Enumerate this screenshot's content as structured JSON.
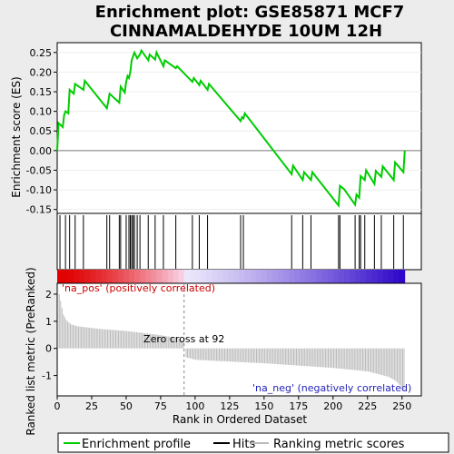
{
  "chart_data": {
    "type": "line",
    "title_line1": "Enrichment plot: GSE85871 MCF7",
    "title_line2": "CINNAMALDEHYDE 10UM 12H",
    "top_panel": {
      "ylabel": "Enrichment score (ES)",
      "ylim": [
        -0.16,
        0.275
      ],
      "yticks": [
        "-0.15",
        "-0.10",
        "-0.05",
        "0.00",
        "0.05",
        "0.10",
        "0.15",
        "0.20",
        "0.25"
      ],
      "series": [
        {
          "x": [
            0,
            1,
            4,
            5,
            6,
            8,
            9,
            12,
            13,
            19,
            20,
            36,
            37,
            38,
            45,
            46,
            49,
            50,
            51,
            52,
            53,
            54,
            55,
            56,
            58,
            60,
            61,
            66,
            67,
            71,
            72,
            77,
            78,
            86,
            87,
            98,
            99,
            103,
            104,
            109,
            110,
            133,
            134,
            135,
            136,
            170,
            171,
            178,
            179,
            184,
            185,
            204,
            205,
            208,
            216,
            217,
            219,
            220,
            223,
            224,
            230,
            231,
            235,
            236,
            244,
            245,
            251,
            252
          ],
          "es": [
            0.0,
            0.07,
            0.06,
            0.09,
            0.1,
            0.095,
            0.155,
            0.145,
            0.17,
            0.155,
            0.178,
            0.108,
            0.125,
            0.145,
            0.122,
            0.163,
            0.148,
            0.175,
            0.19,
            0.185,
            0.2,
            0.23,
            0.24,
            0.25,
            0.235,
            0.245,
            0.255,
            0.23,
            0.245,
            0.232,
            0.25,
            0.215,
            0.23,
            0.21,
            0.215,
            0.175,
            0.185,
            0.167,
            0.178,
            0.155,
            0.17,
            0.075,
            0.085,
            0.082,
            0.095,
            -0.06,
            -0.038,
            -0.075,
            -0.055,
            -0.075,
            -0.055,
            -0.14,
            -0.09,
            -0.098,
            -0.138,
            -0.112,
            -0.12,
            -0.065,
            -0.075,
            -0.05,
            -0.085,
            -0.052,
            -0.067,
            -0.04,
            -0.075,
            -0.03,
            -0.055,
            0.0
          ]
        }
      ],
      "color": "#00cc00"
    },
    "hits": [
      2,
      6,
      9,
      13,
      19,
      36,
      38,
      45,
      46,
      50,
      52,
      53,
      54,
      55,
      56,
      58,
      60,
      66,
      71,
      77,
      86,
      98,
      103,
      109,
      133,
      135,
      170,
      178,
      184,
      204,
      205,
      216,
      219,
      220,
      223,
      230,
      235,
      244,
      251
    ],
    "bottom_panel": {
      "ylabel": "Ranked list metric (PreRanked)",
      "xlabel": "Rank in Ordered Dataset",
      "ylim": [
        -1.75,
        2.4
      ],
      "yticks": [
        "-1",
        "0",
        "1",
        "2"
      ],
      "xticks": [
        "0",
        "25",
        "50",
        "75",
        "100",
        "125",
        "150",
        "175",
        "200",
        "225",
        "250"
      ],
      "xlim": [
        0,
        264
      ],
      "n_genes": 252,
      "zero_cross": 92,
      "zero_cross_label": "Zero cross at 92",
      "pos_label": "'na_pos' (positively correlated)",
      "neg_label": "'na_neg' (negatively correlated)",
      "metric_profile": {
        "x": [
          0,
          1,
          2,
          3,
          4,
          6,
          8,
          10,
          14,
          20,
          30,
          50,
          70,
          85,
          90,
          91,
          92,
          93,
          100,
          150,
          200,
          225,
          240,
          245,
          248,
          250,
          251
        ],
        "v": [
          2.28,
          2.0,
          1.75,
          1.5,
          1.25,
          1.05,
          0.95,
          0.88,
          0.82,
          0.78,
          0.72,
          0.64,
          0.52,
          0.4,
          0.3,
          0.25,
          0.0,
          -0.33,
          -0.42,
          -0.55,
          -0.72,
          -0.85,
          -1.05,
          -1.2,
          -1.35,
          -1.5,
          -1.58
        ]
      }
    },
    "legend": [
      "Enrichment profile",
      "Hits",
      "Ranking metric scores"
    ]
  }
}
